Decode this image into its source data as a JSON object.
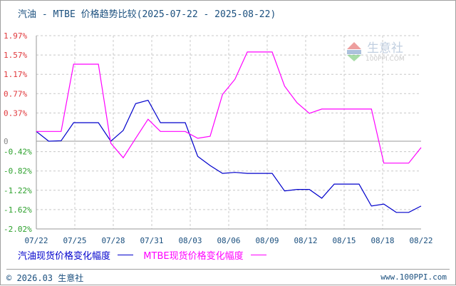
{
  "title": "汽油 - MTBE 价格趋势比较(2025-07-22 - 2025-08-22)",
  "watermark": {
    "brand": "生意社",
    "url": "100PPI.COM"
  },
  "legend": [
    {
      "label": "汽油现货价格变化幅度",
      "color": "#0000cc"
    },
    {
      "label": "MTBE现货价格变化幅度",
      "color": "#ff00ff"
    }
  ],
  "footer": {
    "left": "© 2026.03 生意社",
    "right": "www.100PPI.com"
  },
  "colors": {
    "positive_label": "#e0383c",
    "negative_label": "#2ca02c",
    "zero_label": "#888888",
    "grid": "#c8c8c8",
    "axis": "#999999"
  },
  "chart_data": {
    "type": "line",
    "title": "汽油 - MTBE 价格趋势比较(2025-07-22 - 2025-08-22)",
    "xlabel": "",
    "ylabel": "",
    "ylim": [
      -2.02,
      1.97
    ],
    "y_ticks": [
      "1.97%",
      "1.57%",
      "1.17%",
      "0.77%",
      "0.37%",
      "0",
      "-0.42%",
      "-0.82%",
      "-1.22%",
      "-1.62%",
      "-2.02%"
    ],
    "x_ticks": [
      "07/22",
      "07/25",
      "07/28",
      "07/31",
      "08/03",
      "08/06",
      "08/09",
      "08/12",
      "08/15",
      "08/18",
      "08/22"
    ],
    "grid": true,
    "legend_position": "bottom",
    "x": [
      "07/22",
      "07/23",
      "07/24",
      "07/25",
      "07/26",
      "07/27",
      "07/28",
      "07/29",
      "07/30",
      "07/31",
      "08/01",
      "08/02",
      "08/03",
      "08/04",
      "08/05",
      "08/06",
      "08/07",
      "08/08",
      "08/09",
      "08/10",
      "08/11",
      "08/12",
      "08/13",
      "08/14",
      "08/15",
      "08/16",
      "08/17",
      "08/18",
      "08/19",
      "08/20",
      "08/21",
      "08/22"
    ],
    "series": [
      {
        "name": "汽油现货价格变化幅度",
        "color": "#0000cc",
        "values": [
          0.0,
          -0.2,
          -0.19,
          0.18,
          0.18,
          0.18,
          -0.2,
          0.02,
          0.57,
          0.64,
          0.18,
          0.18,
          0.18,
          -0.51,
          -0.7,
          -0.86,
          -0.84,
          -0.86,
          -0.86,
          -0.86,
          -1.22,
          -1.19,
          -1.19,
          -1.37,
          -1.08,
          -1.08,
          -1.08,
          -1.53,
          -1.49,
          -1.66,
          -1.66,
          -1.53
        ]
      },
      {
        "name": "MTBE现货价格变化幅度",
        "color": "#ff00ff",
        "values": [
          0.0,
          0.0,
          0.0,
          1.38,
          1.38,
          1.38,
          -0.24,
          -0.54,
          -0.14,
          0.25,
          0.0,
          0.0,
          0.0,
          -0.14,
          -0.1,
          0.76,
          1.07,
          1.63,
          1.63,
          1.63,
          0.93,
          0.59,
          0.37,
          0.46,
          0.46,
          0.46,
          0.46,
          0.46,
          -0.65,
          -0.65,
          -0.65,
          -0.33
        ]
      }
    ]
  }
}
